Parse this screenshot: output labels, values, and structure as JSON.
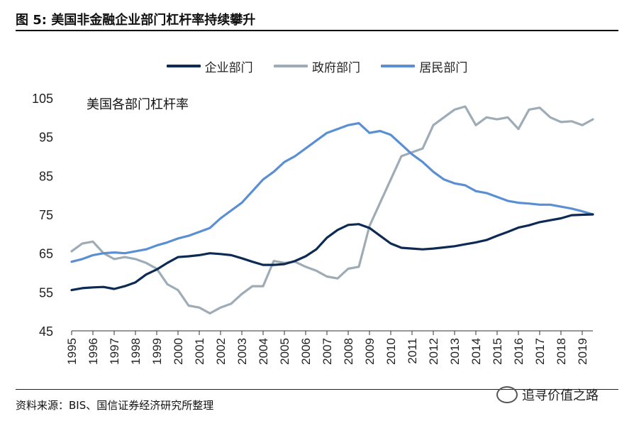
{
  "title": "图 5: 美国非金融企业部门杠杆率持续攀升",
  "source": "资料来源：BIS、国信证券经济研究所整理",
  "watermark": "追寻价值之路",
  "chart_data": {
    "type": "line",
    "annotation": "美国各部门杠杆率",
    "ylim": [
      45,
      105
    ],
    "yticks": [
      45,
      55,
      65,
      75,
      85,
      95,
      105
    ],
    "xticks": [
      "1995",
      "1996",
      "1997",
      "1998",
      "1999",
      "2000",
      "2001",
      "2002",
      "2003",
      "2004",
      "2005",
      "2006",
      "2007",
      "2008",
      "2009",
      "2010",
      "2011",
      "2012",
      "2013",
      "2014",
      "2015",
      "2016",
      "2017",
      "2018",
      "2019"
    ],
    "xlim": [
      1995,
      2019.5
    ],
    "grid": false,
    "legend_position": "top",
    "series": [
      {
        "name": "企业部门",
        "color": "#0d2a55",
        "x": [
          1995,
          1995.5,
          1996,
          1996.5,
          1997,
          1997.5,
          1998,
          1998.5,
          1999,
          1999.5,
          2000,
          2000.5,
          2001,
          2001.5,
          2002,
          2002.5,
          2003,
          2003.5,
          2004,
          2004.5,
          2005,
          2005.5,
          2006,
          2006.5,
          2007,
          2007.5,
          2008,
          2008.5,
          2009,
          2009.5,
          2010,
          2010.5,
          2011,
          2011.5,
          2012,
          2012.5,
          2013,
          2013.5,
          2014,
          2014.5,
          2015,
          2015.5,
          2016,
          2016.5,
          2017,
          2017.5,
          2018,
          2018.5,
          2019,
          2019.5
        ],
        "values": [
          55.5,
          56,
          56.2,
          56.3,
          55.8,
          56.5,
          57.5,
          59.5,
          60.8,
          62.5,
          64,
          64.2,
          64.5,
          65,
          64.8,
          64.5,
          63.7,
          62.8,
          62,
          62,
          62.2,
          63,
          64.2,
          66,
          69,
          71,
          72.3,
          72.5,
          71.5,
          69.5,
          67.5,
          66.4,
          66.2,
          66.0,
          66.2,
          66.5,
          66.8,
          67.3,
          67.8,
          68.4,
          69.5,
          70.5,
          71.6,
          72.2,
          73,
          73.5,
          74,
          74.8,
          74.9,
          75
        ]
      },
      {
        "name": "政府部门",
        "color": "#9eacb7",
        "x": [
          1995,
          1995.5,
          1996,
          1996.5,
          1997,
          1997.5,
          1998,
          1998.5,
          1999,
          1999.5,
          2000,
          2000.5,
          2001,
          2001.5,
          2002,
          2002.5,
          2003,
          2003.5,
          2004,
          2004.5,
          2005,
          2005.5,
          2006,
          2006.5,
          2007,
          2007.5,
          2008,
          2008.5,
          2009,
          2009.5,
          2010,
          2010.5,
          2011,
          2011.5,
          2012,
          2012.5,
          2013,
          2013.5,
          2014,
          2014.5,
          2015,
          2015.5,
          2016,
          2016.5,
          2017,
          2017.5,
          2018,
          2018.5,
          2019,
          2019.5
        ],
        "values": [
          65.5,
          67.5,
          68,
          65,
          63.5,
          64,
          63.5,
          62.5,
          61,
          57,
          55.5,
          51.5,
          51,
          49.5,
          51,
          52,
          54.5,
          56.5,
          56.5,
          63,
          62.5,
          62.8,
          61.5,
          60.5,
          59,
          58.5,
          61,
          61.5,
          72,
          78,
          84,
          90,
          91,
          92,
          98,
          100,
          102,
          102.8,
          98,
          100,
          99.5,
          100,
          97,
          102,
          102.5,
          100,
          98.8,
          99,
          98,
          99.5
        ]
      },
      {
        "name": "居民部门",
        "color": "#5b8fd4",
        "x": [
          1995,
          1995.5,
          1996,
          1996.5,
          1997,
          1997.5,
          1998,
          1998.5,
          1999,
          1999.5,
          2000,
          2000.5,
          2001,
          2001.5,
          2002,
          2002.5,
          2003,
          2003.5,
          2004,
          2004.5,
          2005,
          2005.5,
          2006,
          2006.5,
          2007,
          2007.5,
          2008,
          2008.5,
          2009,
          2009.5,
          2010,
          2010.5,
          2011,
          2011.5,
          2012,
          2012.5,
          2013,
          2013.5,
          2014,
          2014.5,
          2015,
          2015.5,
          2016,
          2016.5,
          2017,
          2017.5,
          2018,
          2018.5,
          2019,
          2019.5
        ],
        "values": [
          62.8,
          63.5,
          64.5,
          65,
          65.2,
          65,
          65.5,
          66,
          67,
          67.8,
          68.8,
          69.5,
          70.5,
          71.5,
          74,
          76,
          78,
          81,
          84,
          86,
          88.5,
          90,
          92,
          94,
          96,
          97,
          98,
          98.5,
          96,
          96.5,
          95.5,
          93,
          90.5,
          88.5,
          86,
          84,
          83,
          82.5,
          81,
          80.5,
          79.5,
          78.5,
          78,
          77.8,
          77.5,
          77.5,
          77,
          76.5,
          75.8,
          75
        ]
      }
    ]
  }
}
